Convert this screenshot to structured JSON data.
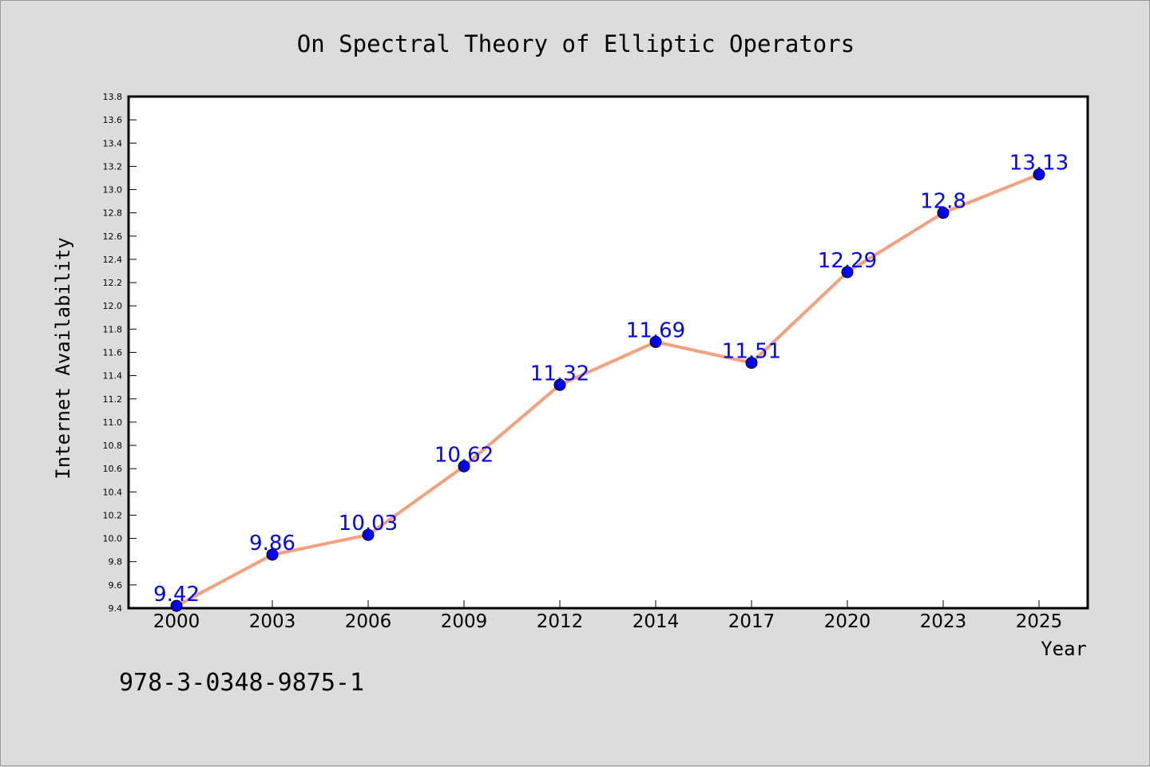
{
  "chart_data": {
    "type": "line",
    "title": "On Spectral Theory of Elliptic Operators",
    "xlabel": "Year",
    "ylabel": "Internet Availability",
    "categories": [
      "2000",
      "2003",
      "2006",
      "2009",
      "2012",
      "2014",
      "2017",
      "2020",
      "2023",
      "2025"
    ],
    "series": [
      {
        "values": [
          9.42,
          9.86,
          10.03,
          10.62,
          11.32,
          11.69,
          11.51,
          12.29,
          12.8,
          13.13
        ],
        "data_labels": [
          "9.42",
          "9.86",
          "10.03",
          "10.62",
          "11.32",
          "11.69",
          "11.51",
          "12.29",
          "12.8",
          "13.13"
        ],
        "line_color": "#f4a07e",
        "marker_color": "#0000ff"
      }
    ],
    "ylim": [
      9.4,
      13.8
    ],
    "yticks": [
      "9.4",
      "9.6",
      "9.8",
      "10.0",
      "10.2",
      "10.4",
      "10.6",
      "10.8",
      "11.0",
      "11.2",
      "11.4",
      "11.6",
      "11.8",
      "12.0",
      "12.2",
      "12.4",
      "12.6",
      "12.8",
      "13.0",
      "13.2",
      "13.4",
      "13.6",
      "13.8"
    ],
    "grid": false,
    "legend": "none"
  },
  "footer": {
    "isbn": "978-3-0348-9875-1"
  },
  "colors": {
    "background": "#dcdcdc",
    "plot_background": "#ffffff",
    "label_color": "#0000ff"
  }
}
